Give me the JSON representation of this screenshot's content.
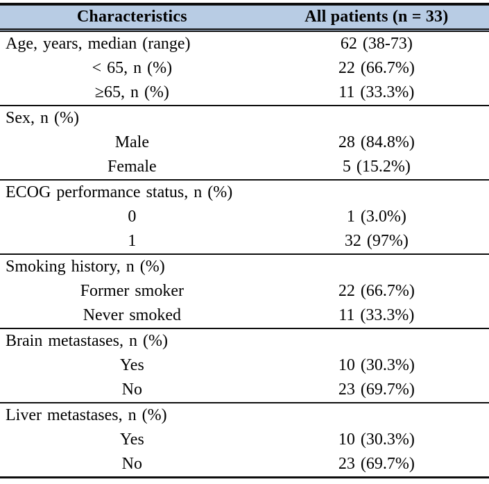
{
  "table": {
    "columns": [
      "Characteristics",
      "All patients (n = 33)"
    ],
    "colors": {
      "header_bg": "#b8cce4",
      "border": "#0d0d0d",
      "text": "#000000"
    },
    "sections": [
      {
        "rows": [
          {
            "label": "Age, years, median (range)",
            "value": "62 (38-73)",
            "indent": false
          },
          {
            "label": "< 65, n (%)",
            "value": "22 (66.7%)",
            "indent": true
          },
          {
            "label": "≥65, n (%)",
            "value": "11 (33.3%)",
            "indent": true
          }
        ]
      },
      {
        "rows": [
          {
            "label": "Sex, n (%)",
            "value": "",
            "indent": false
          },
          {
            "label": "Male",
            "value": "28 (84.8%)",
            "indent": true
          },
          {
            "label": "Female",
            "value": "5 (15.2%)",
            "indent": true
          }
        ]
      },
      {
        "rows": [
          {
            "label": "ECOG performance status, n (%)",
            "value": "",
            "indent": false
          },
          {
            "label": "0",
            "value": "1 (3.0%)",
            "indent": true
          },
          {
            "label": "1",
            "value": "32 (97%)",
            "indent": true
          }
        ]
      },
      {
        "rows": [
          {
            "label": "Smoking history, n (%)",
            "value": "",
            "indent": false
          },
          {
            "label": "Former smoker",
            "value": "22 (66.7%)",
            "indent": true
          },
          {
            "label": "Never smoked",
            "value": "11 (33.3%)",
            "indent": true
          }
        ]
      },
      {
        "rows": [
          {
            "label": "Brain metastases, n (%)",
            "value": "",
            "indent": false
          },
          {
            "label": "Yes",
            "value": "10 (30.3%)",
            "indent": true
          },
          {
            "label": "No",
            "value": "23 (69.7%)",
            "indent": true
          }
        ]
      },
      {
        "rows": [
          {
            "label": "Liver metastases, n (%)",
            "value": "",
            "indent": false
          },
          {
            "label": "Yes",
            "value": "10 (30.3%)",
            "indent": true
          },
          {
            "label": "No",
            "value": "23 (69.7%)",
            "indent": true
          }
        ]
      }
    ]
  }
}
